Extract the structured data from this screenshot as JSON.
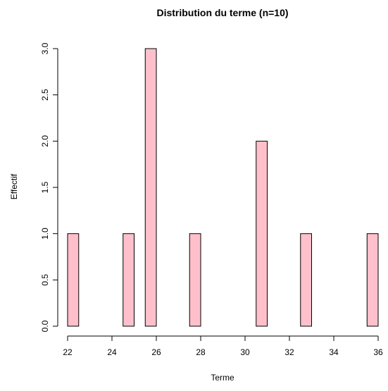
{
  "chart_data": {
    "type": "bar",
    "title": "Distribution du terme (n=10)",
    "xlabel": "Terme",
    "ylabel": "Effectif",
    "xlim": [
      22,
      36
    ],
    "ylim": [
      0,
      3
    ],
    "x_ticks": [
      22,
      24,
      26,
      28,
      30,
      32,
      34,
      36
    ],
    "y_ticks": [
      0,
      0.5,
      1,
      1.5,
      2,
      2.5,
      3
    ],
    "y_tick_labels": [
      "0.0",
      "0.5",
      "1.0",
      "1.5",
      "2.0",
      "2.5",
      "3.0"
    ],
    "bin_width": 0.5,
    "bars": [
      {
        "x": 22.25,
        "count": 1
      },
      {
        "x": 24.75,
        "count": 1
      },
      {
        "x": 25.75,
        "count": 3
      },
      {
        "x": 27.75,
        "count": 1
      },
      {
        "x": 30.75,
        "count": 2
      },
      {
        "x": 32.75,
        "count": 1
      },
      {
        "x": 35.75,
        "count": 1
      }
    ],
    "bar_fill": "#FFC0CB",
    "bar_stroke": "#000000",
    "grid": false
  }
}
